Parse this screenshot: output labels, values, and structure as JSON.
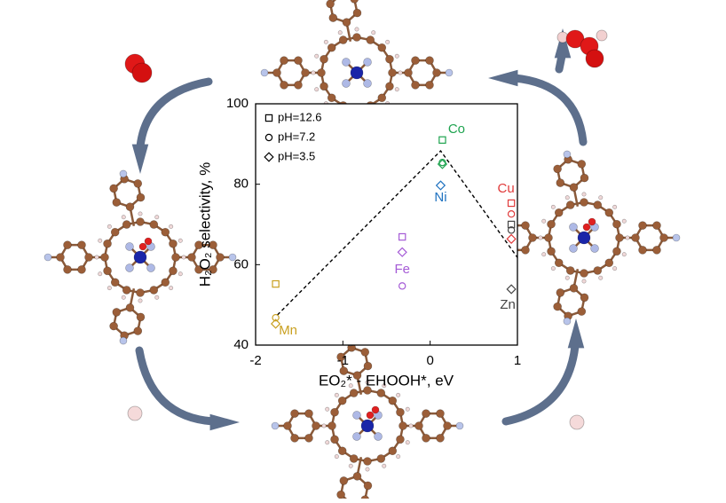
{
  "chart_data": {
    "type": "scatter",
    "xlabel": "EO₂* - EHOOH*, eV",
    "ylabel": "H₂O₂ selectivity, %",
    "xlim": [
      -2,
      1
    ],
    "xticks": [
      -2,
      -1,
      0,
      1
    ],
    "ylim": [
      40,
      100
    ],
    "yticks": [
      40,
      60,
      80,
      100
    ],
    "legend": [
      {
        "label": "pH=12.6",
        "marker": "square"
      },
      {
        "label": "pH=7.2",
        "marker": "circle"
      },
      {
        "label": "pH=3.5",
        "marker": "diamond"
      }
    ],
    "series": [
      {
        "name": "Mn",
        "color": "#c9a020",
        "x": [
          -1.77,
          -1.77,
          -1.77
        ],
        "values": [
          55.2,
          46.8,
          45.3
        ],
        "markers": [
          "square",
          "circle",
          "diamond"
        ]
      },
      {
        "name": "Fe",
        "color": "#a55bd6",
        "x": [
          -0.32,
          -0.32,
          -0.32
        ],
        "values": [
          66.9,
          54.7,
          63.1
        ],
        "markers": [
          "square",
          "circle",
          "diamond"
        ]
      },
      {
        "name": "Co",
        "color": "#1ea34f",
        "x": [
          0.14,
          0.14,
          0.14
        ],
        "values": [
          91,
          85.4,
          85
        ],
        "markers": [
          "square",
          "circle",
          "diamond"
        ]
      },
      {
        "name": "Ni",
        "color": "#1f72c0",
        "x": [
          0.12
        ],
        "values": [
          79.7
        ],
        "markers": [
          "diamond"
        ]
      },
      {
        "name": "Cu",
        "color": "#e03a3a",
        "x": [
          0.93,
          0.93,
          0.93
        ],
        "values": [
          75.3,
          72.6,
          66.4
        ],
        "markers": [
          "square",
          "circle",
          "diamond"
        ]
      },
      {
        "name": "Zn",
        "color": "#444444",
        "x": [
          0.93,
          0.93,
          0.93
        ],
        "values": [
          70,
          68.6,
          53.9
        ],
        "markers": [
          "square",
          "circle",
          "diamond"
        ]
      }
    ],
    "trend": {
      "x": [
        -1.75,
        0.12,
        1
      ],
      "values": [
        47.5,
        88.3,
        61.8
      ],
      "color": "#000000"
    }
  }
}
